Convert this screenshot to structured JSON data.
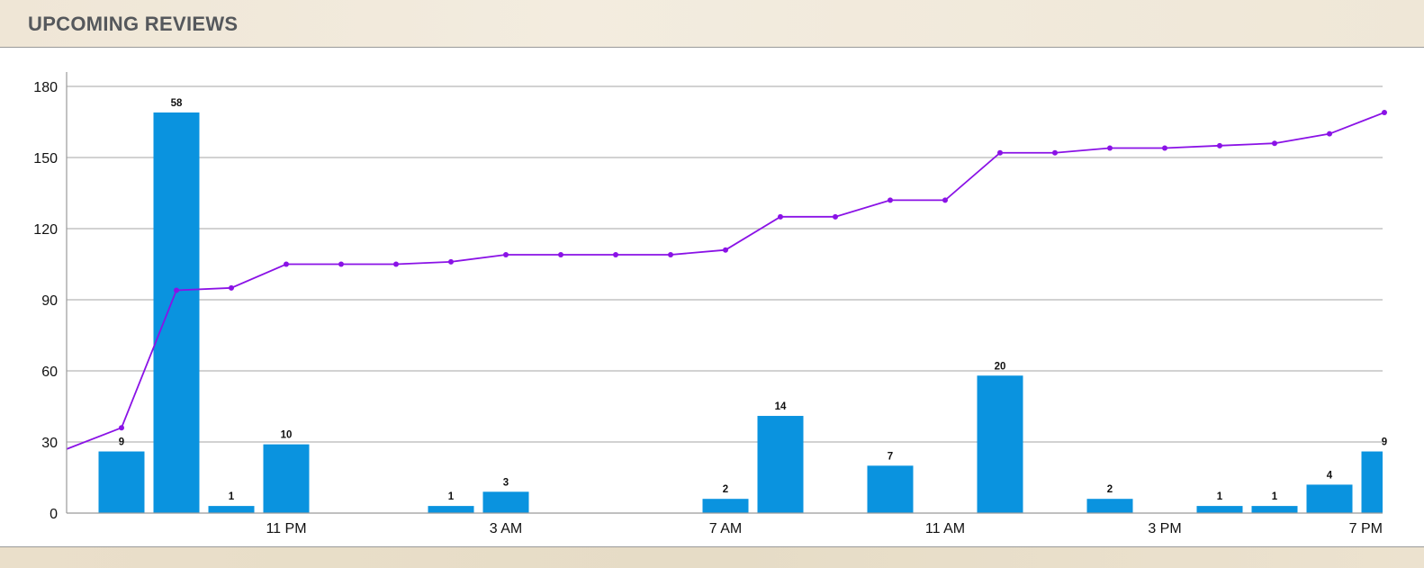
{
  "header": {
    "title": "UPCOMING REVIEWS"
  },
  "colors": {
    "bar": "#0a93df",
    "line": "#8a12e6",
    "grid": "#b8b8b8",
    "axis": "#9a9a9a"
  },
  "chart_data": {
    "type": "bar",
    "ylim": [
      0,
      180
    ],
    "y_ticks": [
      0,
      30,
      60,
      90,
      120,
      150,
      180
    ],
    "x_tick_labels": [
      {
        "index": 4,
        "label": "11 PM"
      },
      {
        "index": 8,
        "label": "3 AM"
      },
      {
        "index": 12,
        "label": "7 AM"
      },
      {
        "index": 16,
        "label": "11 AM"
      },
      {
        "index": 20,
        "label": "3 PM"
      },
      {
        "index": 24,
        "label": "7 PM"
      }
    ],
    "grid": true,
    "series": [
      {
        "type": "bar",
        "values": [
          0,
          9,
          58,
          1,
          10,
          0,
          0,
          1,
          3,
          0,
          0,
          0,
          2,
          14,
          0,
          7,
          0,
          20,
          0,
          2,
          0,
          1,
          1,
          4,
          9
        ],
        "labels": [
          "",
          "9",
          "58",
          "1",
          "10",
          "",
          "",
          "1",
          "3",
          "",
          "",
          "",
          "2",
          "14",
          "",
          "7",
          "",
          "20",
          "",
          "2",
          "",
          "1",
          "1",
          "4",
          "9"
        ],
        "bar_values_scaled": [
          0,
          26,
          169,
          3,
          29,
          0,
          0,
          3,
          9,
          0,
          0,
          0,
          6,
          41,
          0,
          20,
          0,
          58,
          0,
          6,
          0,
          3,
          3,
          12,
          26
        ]
      },
      {
        "type": "line",
        "values": [
          27,
          36,
          94,
          95,
          105,
          105,
          105,
          106,
          109,
          109,
          109,
          109,
          111,
          125,
          125,
          132,
          132,
          152,
          152,
          154,
          154,
          155,
          156,
          160,
          169
        ]
      }
    ]
  }
}
